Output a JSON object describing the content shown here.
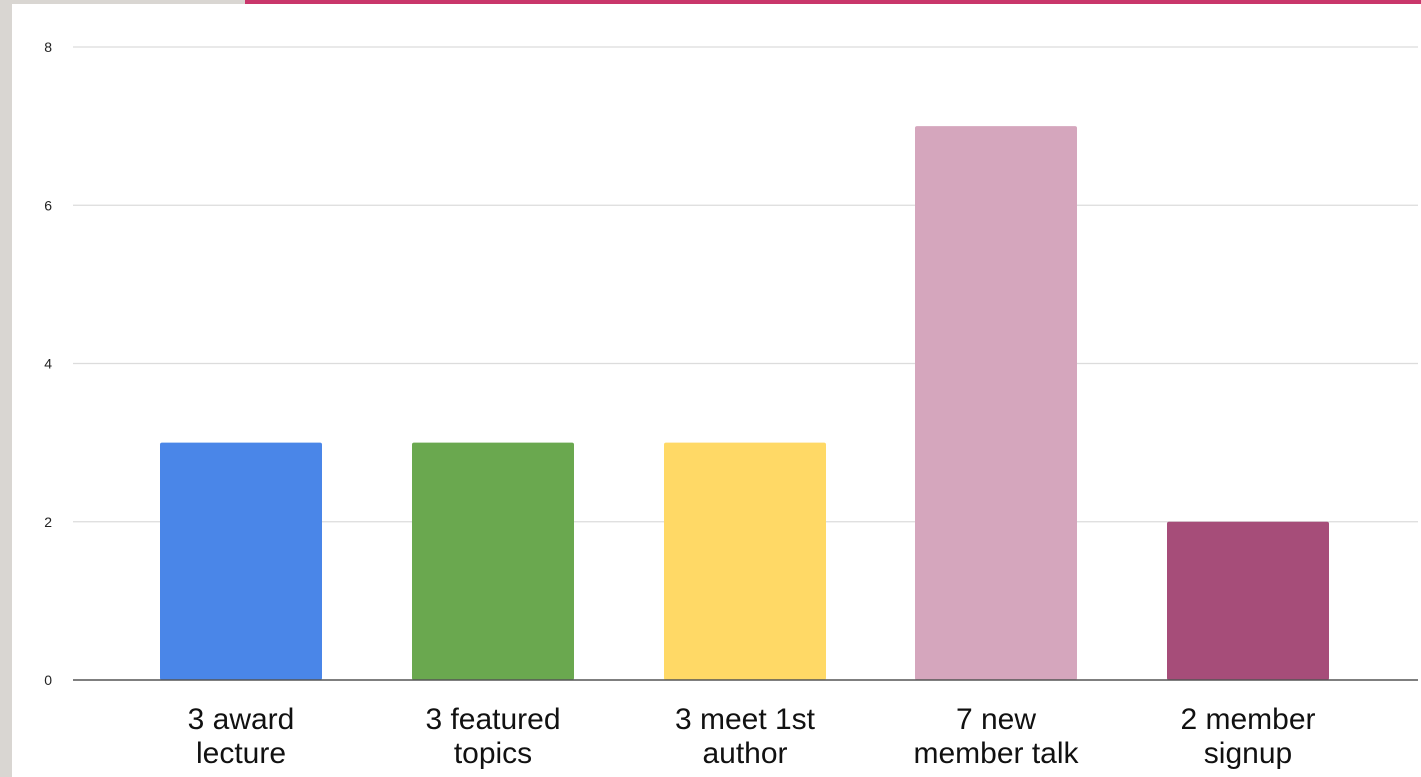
{
  "chart_data": {
    "type": "bar",
    "categories": [
      [
        "3 award",
        "lecture"
      ],
      [
        "3 featured",
        "topics"
      ],
      [
        "3 meet 1st",
        "author"
      ],
      [
        "7 new",
        "member talk"
      ],
      [
        "2 member",
        "signup"
      ]
    ],
    "values": [
      3,
      3,
      3,
      7,
      2
    ],
    "colors": [
      "#4a86e8",
      "#6aa84f",
      "#ffd966",
      "#d5a6bd",
      "#a64d79"
    ],
    "ylim": [
      0,
      8
    ],
    "yticks": [
      0,
      2,
      4,
      6,
      8
    ],
    "grid": true,
    "accent_color": "#c9366b"
  }
}
